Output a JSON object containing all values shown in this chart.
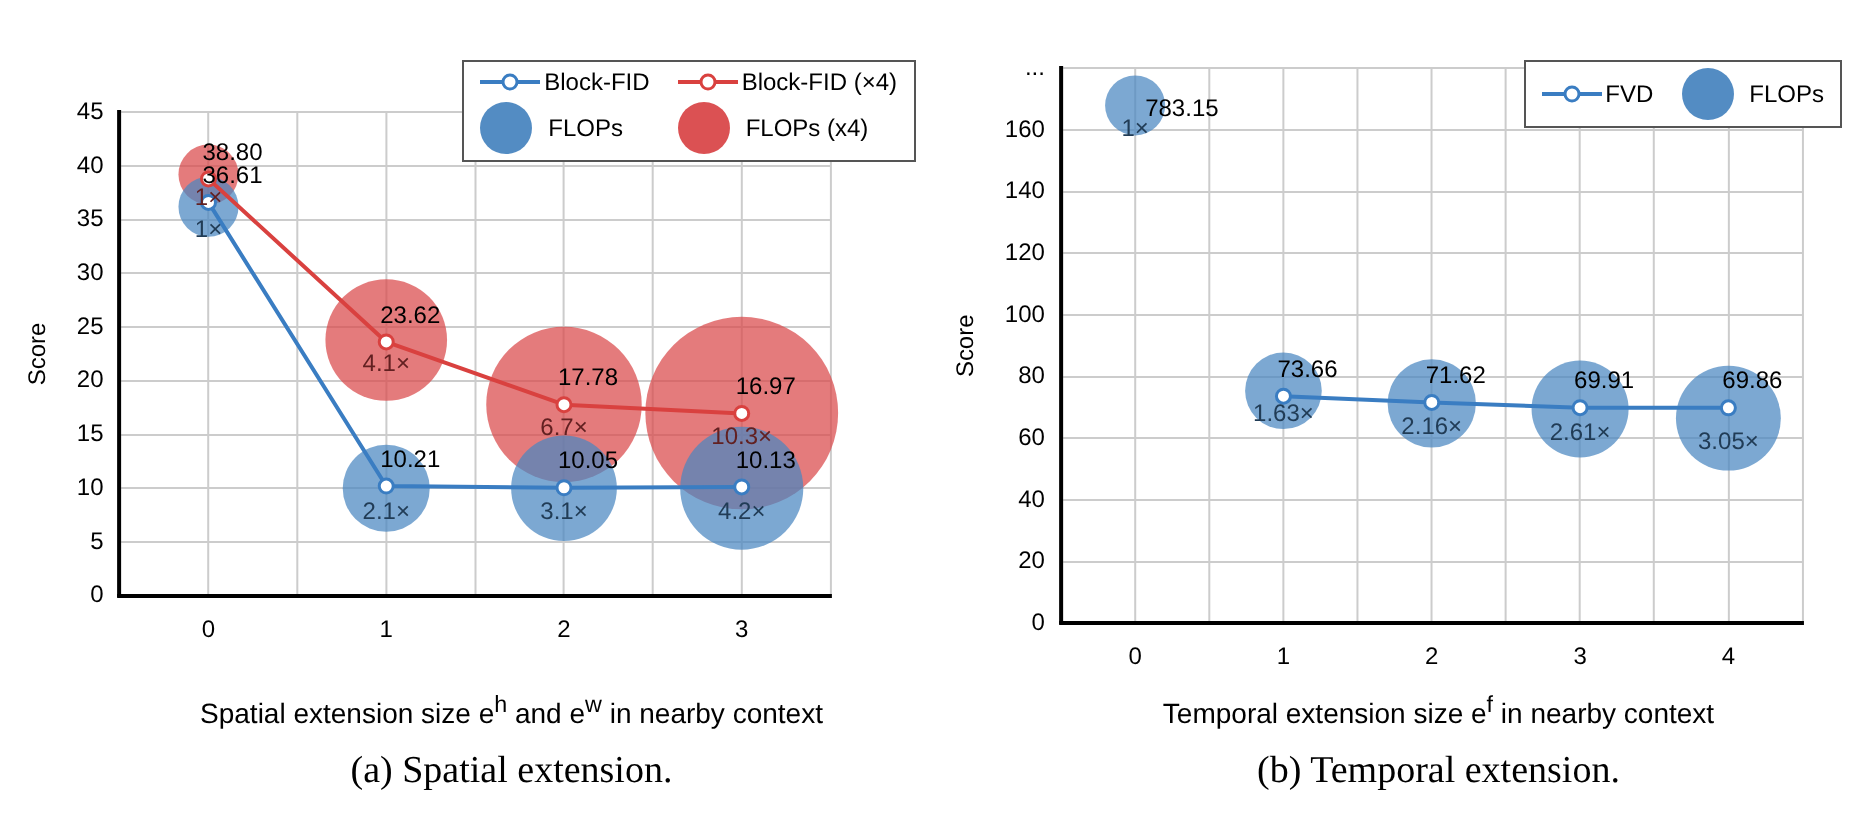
{
  "chart_data": [
    {
      "type": "line",
      "x": [
        0,
        1,
        2,
        3
      ],
      "xlim": [
        -0.5,
        3.5
      ],
      "xticks": [
        {
          "value": -0.5,
          "label": null
        },
        0,
        {
          "value": 0.5,
          "label": null
        },
        1,
        {
          "value": 1.5,
          "label": null
        },
        2,
        {
          "value": 2.5,
          "label": null
        },
        3,
        {
          "value": 3.5,
          "label": null
        }
      ],
      "ylim": [
        0,
        45
      ],
      "yticks": [
        0,
        5,
        10,
        15,
        20,
        25,
        30,
        35,
        40,
        45
      ],
      "ylabel": "Score",
      "xlabel": "Spatial extension size  e$^{h}$ and  e$^{w}$  in nearby context",
      "grid": true,
      "legend": "top right",
      "marker": "circle",
      "annotations": [
        "(a) Spatial extension."
      ],
      "series": [
        {
          "name": "Block-FID",
          "color": "#3a7dc2",
          "values": [
            36.61,
            10.21,
            10.05,
            10.13
          ],
          "value_labels": [
            "36.61",
            "10.21",
            "10.05",
            "10.13"
          ]
        },
        {
          "name": "Block-FID (×4)",
          "color": "#d9413f",
          "values": [
            38.8,
            23.62,
            17.78,
            16.97
          ],
          "value_labels": [
            "38.80",
            "23.62",
            "17.78",
            "16.97"
          ]
        },
        {
          "name": "FLOPs",
          "type": "bubble",
          "color": "#4a86c0",
          "values": [
            36.2,
            10,
            10,
            10
          ],
          "sizes": [
            1,
            2.1,
            3.1,
            4.2
          ],
          "value_labels": [
            "1×",
            "2.1×",
            "3.1×",
            "4.2×"
          ]
        },
        {
          "name": "FLOPs (x4)",
          "type": "bubble",
          "color": "#d9484a",
          "values": [
            39.2,
            23.8,
            17.8,
            17
          ],
          "sizes": [
            1,
            4.1,
            6.7,
            10.3
          ],
          "value_labels": [
            "1×",
            "4.1×",
            "6.7×",
            "10.3×"
          ]
        }
      ]
    },
    {
      "type": "line",
      "x": [
        0,
        1,
        2,
        3,
        4
      ],
      "xlim": [
        -0.5,
        4.5
      ],
      "xticks": [
        {
          "value": -0.5,
          "label": null
        },
        0,
        {
          "value": 0.5,
          "label": null
        },
        1,
        {
          "value": 1.5,
          "label": null
        },
        2,
        {
          "value": 2.5,
          "label": null
        },
        3,
        {
          "value": 3.5,
          "label": null
        },
        4,
        {
          "value": 4.5,
          "label": null
        }
      ],
      "ylim": [
        0,
        180
      ],
      "yticks": [
        0,
        20,
        40,
        60,
        80,
        100,
        120,
        140,
        160,
        {
          "value": 180,
          "label": "..."
        }
      ],
      "ylabel": "Score",
      "xlabel": "Temporal extension size  e$^{f}$  in nearby context",
      "grid": true,
      "legend": "top right",
      "marker": "circle",
      "annotations": [
        {
          "text": "783.15",
          "x": 0,
          "y": 168
        },
        "(b) Temporal extension."
      ],
      "series": [
        {
          "name": "FVD",
          "color": "#3a7dc2",
          "values": [
            null,
            73.66,
            71.62,
            69.91,
            69.86
          ],
          "value_labels": [
            null,
            "73.66",
            "71.62",
            "69.91",
            "69.86"
          ]
        },
        {
          "name": "FLOPs",
          "type": "bubble",
          "color": "#4a86c0",
          "values": [
            168,
            75.4,
            71.3,
            69.5,
            66.5
          ],
          "sizes": [
            1,
            1.63,
            2.16,
            2.61,
            3.05
          ],
          "value_labels": [
            "1×",
            "1.63×",
            "2.16×",
            "2.61×",
            "3.05×"
          ]
        }
      ]
    }
  ]
}
